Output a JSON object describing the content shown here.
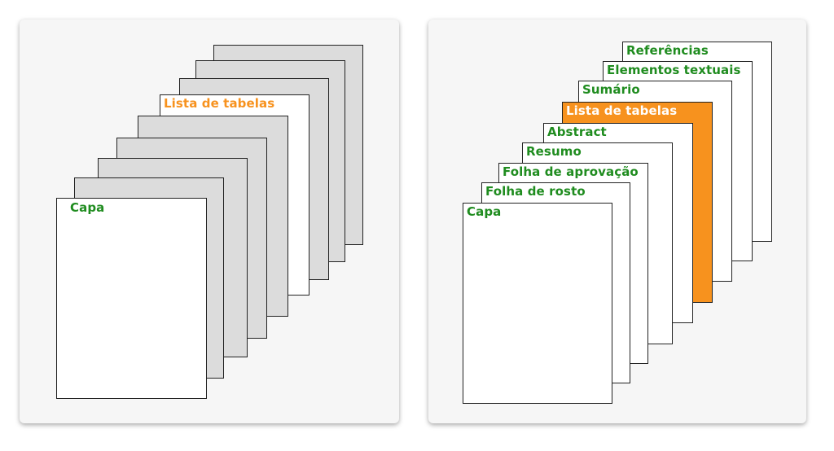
{
  "colors": {
    "label_green": "#1f8c1f",
    "highlight_orange": "#f7921e",
    "page_white": "#ffffff",
    "page_grey": "#dcdcdc",
    "panel_bg": "#f6f6f6"
  },
  "left_panel": {
    "highlight_label": "Lista de tabelas",
    "front_label": "Capa"
  },
  "right_panel": {
    "labels": [
      "Referências",
      "Elementos textuais",
      "Sumário",
      "Lista de tabelas",
      "Abstract",
      "Resumo",
      "Folha de aprovação",
      "Folha de rosto",
      "Capa"
    ]
  }
}
